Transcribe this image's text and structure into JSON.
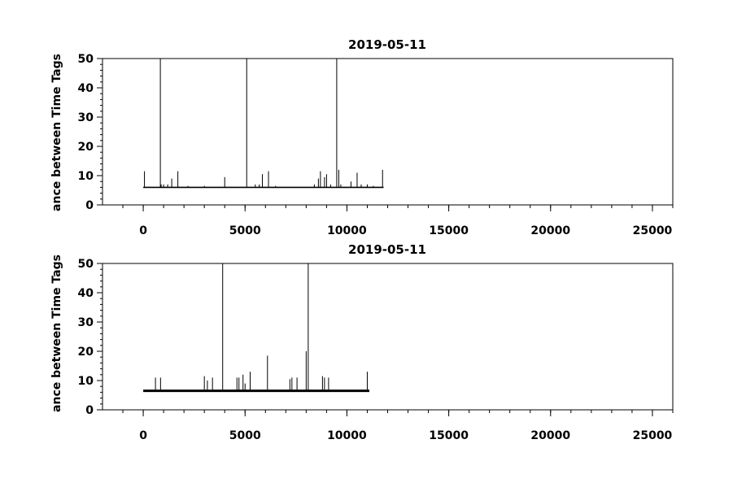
{
  "chart_data": [
    {
      "type": "line",
      "title": "2019-05-11",
      "xlabel": "",
      "ylabel": "ance between Time Tags",
      "xlim": [
        -2000,
        26000
      ],
      "ylim": [
        0,
        50
      ],
      "xticks": [
        0,
        5000,
        10000,
        15000,
        20000,
        25000
      ],
      "xtick_labels": [
        "0",
        "5000",
        "10000",
        "15000",
        "20000",
        "25000"
      ],
      "yticks": [
        0,
        10,
        20,
        30,
        40,
        50
      ],
      "ytick_labels": [
        "0",
        "10",
        "20",
        "30",
        "40",
        "50"
      ],
      "grid": false,
      "baseline": 6,
      "x_range": [
        0,
        11800
      ],
      "series": [
        {
          "values": [
            {
              "x": 60,
              "y": 11.5
            },
            {
              "x": 840,
              "y": 50
            },
            {
              "x": 880,
              "y": 7
            },
            {
              "x": 1000,
              "y": 7
            },
            {
              "x": 1200,
              "y": 7
            },
            {
              "x": 1400,
              "y": 9
            },
            {
              "x": 1700,
              "y": 11.5
            },
            {
              "x": 2200,
              "y": 6.5
            },
            {
              "x": 3000,
              "y": 6.5
            },
            {
              "x": 4000,
              "y": 9.5
            },
            {
              "x": 5080,
              "y": 50
            },
            {
              "x": 5500,
              "y": 7
            },
            {
              "x": 5700,
              "y": 7
            },
            {
              "x": 5850,
              "y": 10.5
            },
            {
              "x": 6150,
              "y": 11.5
            },
            {
              "x": 6500,
              "y": 6.5
            },
            {
              "x": 8400,
              "y": 7
            },
            {
              "x": 8600,
              "y": 9
            },
            {
              "x": 8700,
              "y": 11.5
            },
            {
              "x": 8900,
              "y": 9.5
            },
            {
              "x": 9000,
              "y": 10.5
            },
            {
              "x": 9200,
              "y": 7
            },
            {
              "x": 9500,
              "y": 50
            },
            {
              "x": 9600,
              "y": 12
            },
            {
              "x": 9700,
              "y": 7
            },
            {
              "x": 10200,
              "y": 8
            },
            {
              "x": 10500,
              "y": 11
            },
            {
              "x": 10700,
              "y": 7
            },
            {
              "x": 11000,
              "y": 7
            },
            {
              "x": 11300,
              "y": 6.5
            },
            {
              "x": 11750,
              "y": 12
            }
          ]
        }
      ]
    },
    {
      "type": "line",
      "title": "2019-05-11",
      "xlabel": "",
      "ylabel": "ance between Time Tags",
      "xlim": [
        -2000,
        26000
      ],
      "ylim": [
        0,
        50
      ],
      "xticks": [
        0,
        5000,
        10000,
        15000,
        20000,
        25000
      ],
      "xtick_labels": [
        "0",
        "5000",
        "10000",
        "15000",
        "20000",
        "25000"
      ],
      "yticks": [
        0,
        10,
        20,
        30,
        40,
        50
      ],
      "ytick_labels": [
        "0",
        "10",
        "20",
        "30",
        "40",
        "50"
      ],
      "grid": false,
      "baseline": 6.5,
      "x_range": [
        0,
        11100
      ],
      "series": [
        {
          "values": [
            {
              "x": 600,
              "y": 11
            },
            {
              "x": 850,
              "y": 11
            },
            {
              "x": 3000,
              "y": 11.5
            },
            {
              "x": 3150,
              "y": 10
            },
            {
              "x": 3400,
              "y": 11
            },
            {
              "x": 3900,
              "y": 50
            },
            {
              "x": 4600,
              "y": 11
            },
            {
              "x": 4700,
              "y": 11
            },
            {
              "x": 4900,
              "y": 12
            },
            {
              "x": 5000,
              "y": 9
            },
            {
              "x": 5250,
              "y": 13
            },
            {
              "x": 6100,
              "y": 18.5
            },
            {
              "x": 7200,
              "y": 10.5
            },
            {
              "x": 7300,
              "y": 11
            },
            {
              "x": 7550,
              "y": 11
            },
            {
              "x": 8000,
              "y": 20
            },
            {
              "x": 8100,
              "y": 50
            },
            {
              "x": 8800,
              "y": 11.5
            },
            {
              "x": 8900,
              "y": 11
            },
            {
              "x": 9100,
              "y": 11
            },
            {
              "x": 11000,
              "y": 13
            }
          ]
        }
      ]
    }
  ]
}
